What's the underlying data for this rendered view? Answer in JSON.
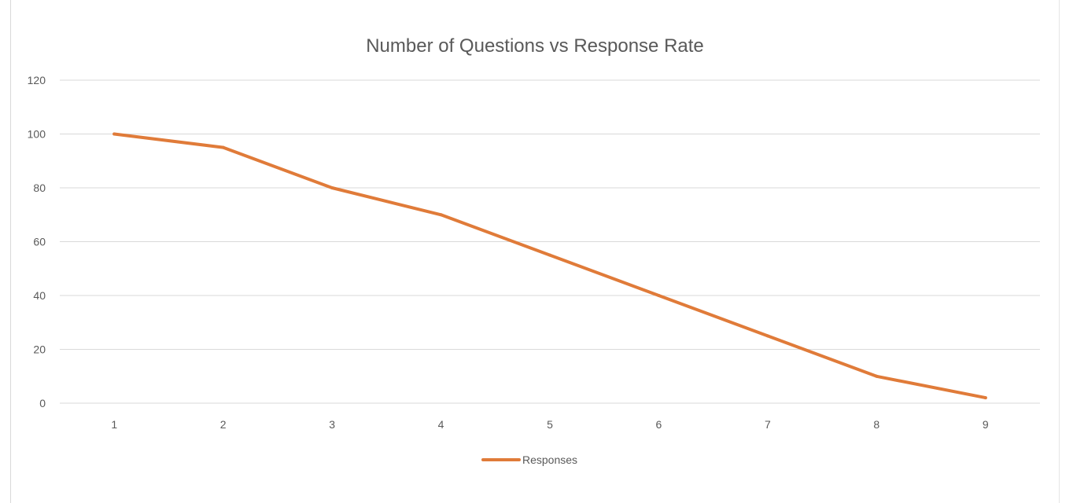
{
  "chart_data": {
    "type": "line",
    "title": "Number of Questions vs Response Rate",
    "xlabel": "",
    "ylabel": "",
    "categories": [
      "1",
      "2",
      "3",
      "4",
      "5",
      "6",
      "7",
      "8",
      "9"
    ],
    "series": [
      {
        "name": "Responses",
        "color": "#e07b39",
        "values": [
          100,
          95,
          80,
          70,
          55,
          40,
          25,
          10,
          2
        ]
      }
    ],
    "ylim": [
      0,
      120
    ],
    "yticks": [
      "0",
      "20",
      "40",
      "60",
      "80",
      "100",
      "120"
    ],
    "grid": true,
    "legend_position": "bottom"
  }
}
